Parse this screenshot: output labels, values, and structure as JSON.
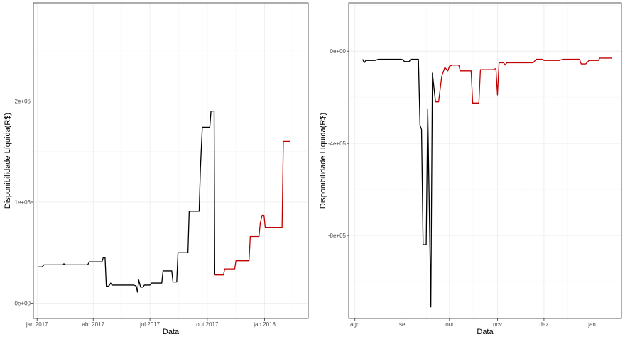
{
  "chart_data": [
    {
      "type": "line",
      "xlabel": "Data",
      "ylabel": "Disponibilidade Líquida(R$)",
      "x_axis": "date",
      "xlim": [
        "2016-12-26",
        "2018-03-12"
      ],
      "ylim": [
        -150000,
        2970000
      ],
      "x_ticks": [
        {
          "date": "2017-01-01",
          "label": "jan 2017"
        },
        {
          "date": "2017-04-01",
          "label": "abr 2017"
        },
        {
          "date": "2017-07-01",
          "label": "jul 2017"
        },
        {
          "date": "2017-10-01",
          "label": "out 2017"
        },
        {
          "date": "2018-01-01",
          "label": "jan 2018"
        }
      ],
      "y_ticks": [
        {
          "value": 0,
          "label": "0e+00"
        },
        {
          "value": 1000000,
          "label": "1e+06"
        },
        {
          "value": 2000000,
          "label": "2e+06"
        }
      ],
      "y_minor": [
        -500000,
        500000,
        1500000,
        2500000
      ],
      "grid": true,
      "series": [
        {
          "color": "#000000",
          "points": [
            [
              "2017-01-02",
              360000
            ],
            [
              "2017-01-09",
              360000
            ],
            [
              "2017-01-12",
              380000
            ],
            [
              "2017-02-10",
              380000
            ],
            [
              "2017-02-13",
              390000
            ],
            [
              "2017-02-16",
              380000
            ],
            [
              "2017-03-23",
              380000
            ],
            [
              "2017-03-26",
              410000
            ],
            [
              "2017-04-15",
              410000
            ],
            [
              "2017-04-17",
              450000
            ],
            [
              "2017-04-20",
              450000
            ],
            [
              "2017-04-22",
              170000
            ],
            [
              "2017-04-26",
              170000
            ],
            [
              "2017-04-29",
              200000
            ],
            [
              "2017-05-01",
              180000
            ],
            [
              "2017-06-05",
              180000
            ],
            [
              "2017-06-09",
              170000
            ],
            [
              "2017-06-11",
              110000
            ],
            [
              "2017-06-13",
              230000
            ],
            [
              "2017-06-16",
              160000
            ],
            [
              "2017-06-20",
              160000
            ],
            [
              "2017-06-22",
              180000
            ],
            [
              "2017-07-01",
              180000
            ],
            [
              "2017-07-03",
              200000
            ],
            [
              "2017-07-20",
              200000
            ],
            [
              "2017-07-22",
              320000
            ],
            [
              "2017-08-05",
              320000
            ],
            [
              "2017-08-07",
              210000
            ],
            [
              "2017-08-13",
              210000
            ],
            [
              "2017-08-15",
              500000
            ],
            [
              "2017-08-31",
              500000
            ],
            [
              "2017-09-02",
              910000
            ],
            [
              "2017-09-18",
              910000
            ],
            [
              "2017-09-20",
              1330000
            ],
            [
              "2017-09-23",
              1740000
            ],
            [
              "2017-10-05",
              1740000
            ],
            [
              "2017-10-07",
              1900000
            ],
            [
              "2017-10-12",
              1900000
            ],
            [
              "2017-10-13",
              280000
            ]
          ]
        },
        {
          "color": "#c00000",
          "points": [
            [
              "2017-10-13",
              280000
            ],
            [
              "2017-10-27",
              280000
            ],
            [
              "2017-10-29",
              340000
            ],
            [
              "2017-11-14",
              340000
            ],
            [
              "2017-11-16",
              420000
            ],
            [
              "2017-12-07",
              420000
            ],
            [
              "2017-12-09",
              660000
            ],
            [
              "2017-12-23",
              660000
            ],
            [
              "2017-12-25",
              790000
            ],
            [
              "2017-12-28",
              870000
            ],
            [
              "2017-12-31",
              870000
            ],
            [
              "2018-01-02",
              750000
            ],
            [
              "2018-01-29",
              750000
            ],
            [
              "2018-01-31",
              1600000
            ],
            [
              "2018-02-11",
              1600000
            ]
          ]
        }
      ]
    },
    {
      "type": "line",
      "xlabel": "Data",
      "ylabel": "Disponibilidade Líquida(R$)",
      "x_axis": "date",
      "xlim": [
        "2017-07-28",
        "2018-01-20"
      ],
      "ylim": [
        -1160000,
        210000
      ],
      "x_ticks": [
        {
          "date": "2017-08-01",
          "label": "ago"
        },
        {
          "date": "2017-09-01",
          "label": "set"
        },
        {
          "date": "2017-10-01",
          "label": "out"
        },
        {
          "date": "2017-11-01",
          "label": "nov"
        },
        {
          "date": "2017-12-01",
          "label": "dez"
        },
        {
          "date": "2018-01-01",
          "label": "jan"
        }
      ],
      "y_ticks": [
        {
          "value": 0,
          "label": "0e+00"
        },
        {
          "value": -400000,
          "label": "-4e+05"
        },
        {
          "value": -800000,
          "label": "-8e+05"
        }
      ],
      "y_minor": [
        200000,
        -200000,
        -600000,
        -1000000
      ],
      "grid": true,
      "series": [
        {
          "color": "#000000",
          "points": [
            [
              "2017-08-06",
              -35000
            ],
            [
              "2017-08-07",
              -50000
            ],
            [
              "2017-08-08",
              -40000
            ],
            [
              "2017-08-14",
              -40000
            ],
            [
              "2017-08-16",
              -35000
            ],
            [
              "2017-08-31",
              -35000
            ],
            [
              "2017-09-01",
              -37000
            ],
            [
              "2017-09-02",
              -45000
            ],
            [
              "2017-09-05",
              -45000
            ],
            [
              "2017-09-06",
              -35000
            ],
            [
              "2017-09-11",
              -35000
            ],
            [
              "2017-09-12",
              -320000
            ],
            [
              "2017-09-13",
              -340000
            ],
            [
              "2017-09-14",
              -840000
            ],
            [
              "2017-09-16",
              -840000
            ],
            [
              "2017-09-17",
              -250000
            ],
            [
              "2017-09-19",
              -1110000
            ],
            [
              "2017-09-20",
              -95000
            ],
            [
              "2017-09-22",
              -220000
            ]
          ]
        },
        {
          "color": "#c00000",
          "points": [
            [
              "2017-09-22",
              -220000
            ],
            [
              "2017-09-24",
              -220000
            ],
            [
              "2017-09-26",
              -110000
            ],
            [
              "2017-09-28",
              -70000
            ],
            [
              "2017-09-30",
              -85000
            ],
            [
              "2017-10-01",
              -65000
            ],
            [
              "2017-10-03",
              -60000
            ],
            [
              "2017-10-07",
              -60000
            ],
            [
              "2017-10-08",
              -85000
            ],
            [
              "2017-10-15",
              -85000
            ],
            [
              "2017-10-16",
              -225000
            ],
            [
              "2017-10-20",
              -225000
            ],
            [
              "2017-10-21",
              -80000
            ],
            [
              "2017-10-29",
              -80000
            ],
            [
              "2017-10-31",
              -75000
            ],
            [
              "2017-11-01",
              -190000
            ],
            [
              "2017-11-02",
              -50000
            ],
            [
              "2017-11-05",
              -50000
            ],
            [
              "2017-11-06",
              -60000
            ],
            [
              "2017-11-07",
              -50000
            ],
            [
              "2017-11-24",
              -50000
            ],
            [
              "2017-11-26",
              -35000
            ],
            [
              "2017-11-30",
              -35000
            ],
            [
              "2017-12-01",
              -40000
            ],
            [
              "2017-12-11",
              -40000
            ],
            [
              "2017-12-13",
              -35000
            ],
            [
              "2017-12-24",
              -35000
            ],
            [
              "2017-12-25",
              -55000
            ],
            [
              "2017-12-28",
              -55000
            ],
            [
              "2017-12-30",
              -40000
            ],
            [
              "2018-01-05",
              -40000
            ],
            [
              "2018-01-06",
              -30000
            ],
            [
              "2018-01-14",
              -30000
            ]
          ]
        }
      ]
    }
  ]
}
